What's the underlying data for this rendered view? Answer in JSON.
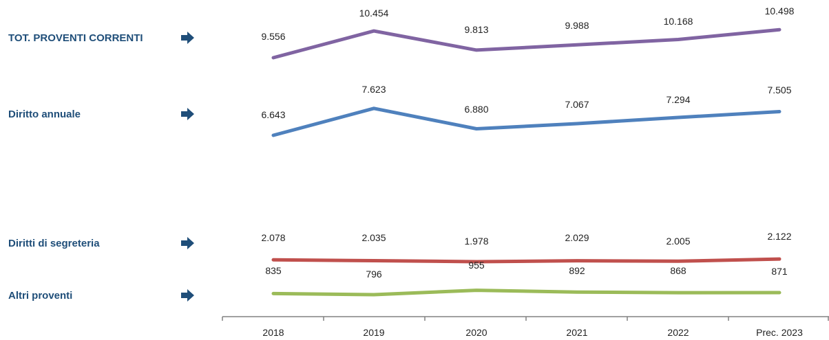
{
  "chart_data": {
    "type": "line",
    "categories": [
      "2018",
      "2019",
      "2020",
      "2021",
      "2022",
      "Prec. 2023"
    ],
    "series": [
      {
        "name": "TOT. PROVENTI CORRENTI",
        "values": [
          9556,
          10454,
          9813,
          9988,
          10168,
          10498
        ],
        "value_labels": [
          "9.556",
          "10.454",
          "9.813",
          "9.988",
          "10.168",
          "10.498"
        ],
        "color": "#8064a2"
      },
      {
        "name": "Diritto annuale",
        "values": [
          6643,
          7623,
          6880,
          7067,
          7294,
          7505
        ],
        "value_labels": [
          "6.643",
          "7.623",
          "6.880",
          "7.067",
          "7.294",
          "7.505"
        ],
        "color": "#4f81bd"
      },
      {
        "name": "Diritti di segreteria",
        "values": [
          2078,
          2035,
          1978,
          2029,
          2005,
          2122
        ],
        "value_labels": [
          "2.078",
          "2.035",
          "1.978",
          "2.029",
          "2.005",
          "2.122"
        ],
        "color": "#c0504d"
      },
      {
        "name": "Altri proventi",
        "values": [
          835,
          796,
          955,
          892,
          868,
          871
        ],
        "value_labels": [
          "835",
          "796",
          "955",
          "892",
          "868",
          "871"
        ],
        "color": "#9bbb59"
      }
    ],
    "label_color": "#1f4e79",
    "arrow_color": "#1f4e79",
    "axis_color": "#808080",
    "legend_position": "left"
  }
}
